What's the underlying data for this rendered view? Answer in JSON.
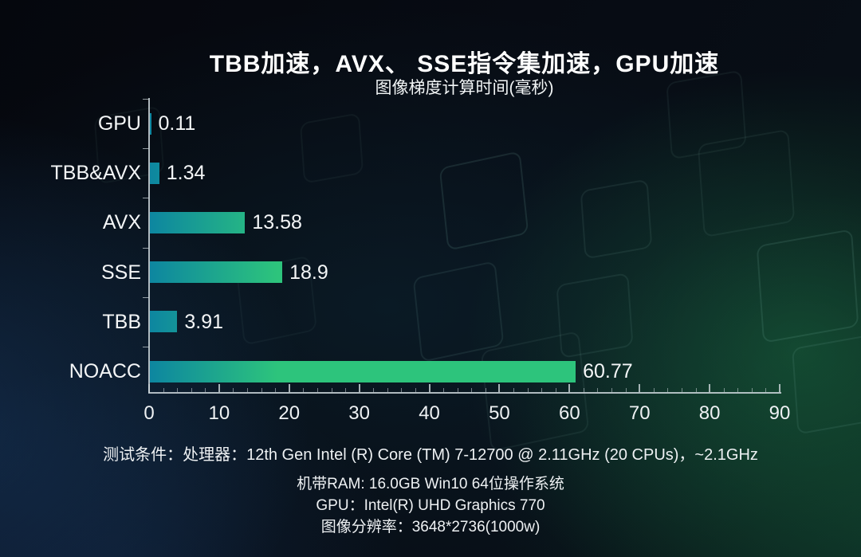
{
  "chart": {
    "title": "TBB加速，AVX、 SSE指令集加速，GPU加速",
    "subtitle": "图像梯度计算时间(毫秒)"
  },
  "chart_data": {
    "type": "bar",
    "orientation": "horizontal",
    "title": "TBB加速，AVX、 SSE指令集加速，GPU加速",
    "subtitle": "图像梯度计算时间(毫秒)",
    "categories": [
      "GPU",
      "TBB&AVX",
      "AVX",
      "SSE",
      "TBB",
      "NOACC"
    ],
    "values": [
      0.11,
      1.34,
      13.58,
      18.9,
      3.91,
      60.77
    ],
    "value_labels": [
      "0.11",
      "1.34",
      "13.58",
      "18.9",
      "3.91",
      "60.77"
    ],
    "xlabel": "",
    "ylabel": "",
    "xlim": [
      0,
      90
    ],
    "x_major_ticks": [
      0,
      10,
      20,
      30,
      40,
      50,
      60,
      70,
      80,
      90
    ],
    "x_minor_step": 2,
    "grid": false,
    "legend": false,
    "colors": {
      "bar_gradient_start": "#0d86a0",
      "bar_gradient_end": "#2dc47c",
      "axis": "#cdd6da",
      "text": "#f4f6f7",
      "title": "#ffffff"
    }
  },
  "footer": {
    "lines": [
      "测试条件：处理器：12th Gen Intel (R)  Core (TM)  7-12700 @ 2.11GHz  (20 CPUs)，~2.1GHz",
      "机带RAM: 16.0GB    Win10 64位操作系统",
      "GPU：Intel(R) UHD Graphics 770",
      "图像分辨率：3648*2736(1000w)"
    ]
  }
}
